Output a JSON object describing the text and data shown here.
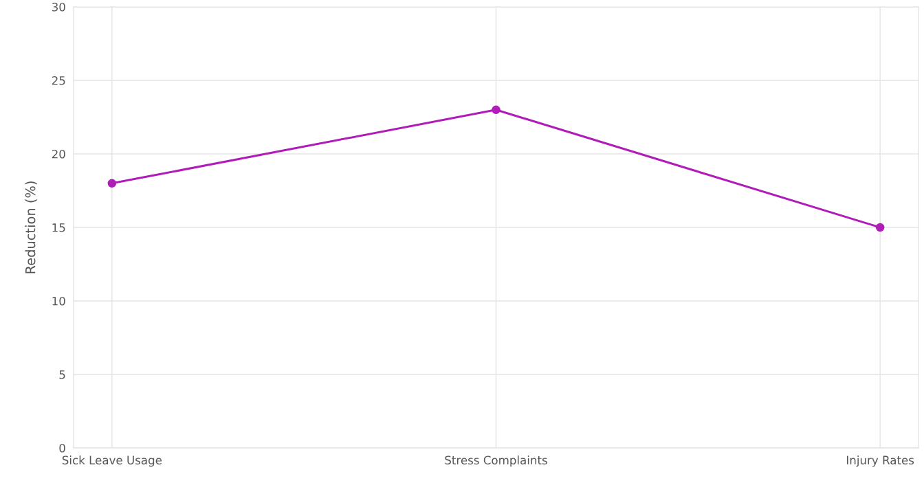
{
  "chart_data": {
    "type": "line",
    "ylabel": "Reduction (%)",
    "categories": [
      "Sick Leave Usage",
      "Stress Complaints",
      "Injury Rates"
    ],
    "series": [
      {
        "color": "#b01cb8",
        "values": [
          18,
          23,
          15
        ]
      }
    ],
    "ylim": [
      0,
      30
    ],
    "yticks": [
      0,
      5,
      10,
      15,
      20,
      25,
      30
    ],
    "grid": true,
    "marker": "circle",
    "line_style": "solid"
  }
}
